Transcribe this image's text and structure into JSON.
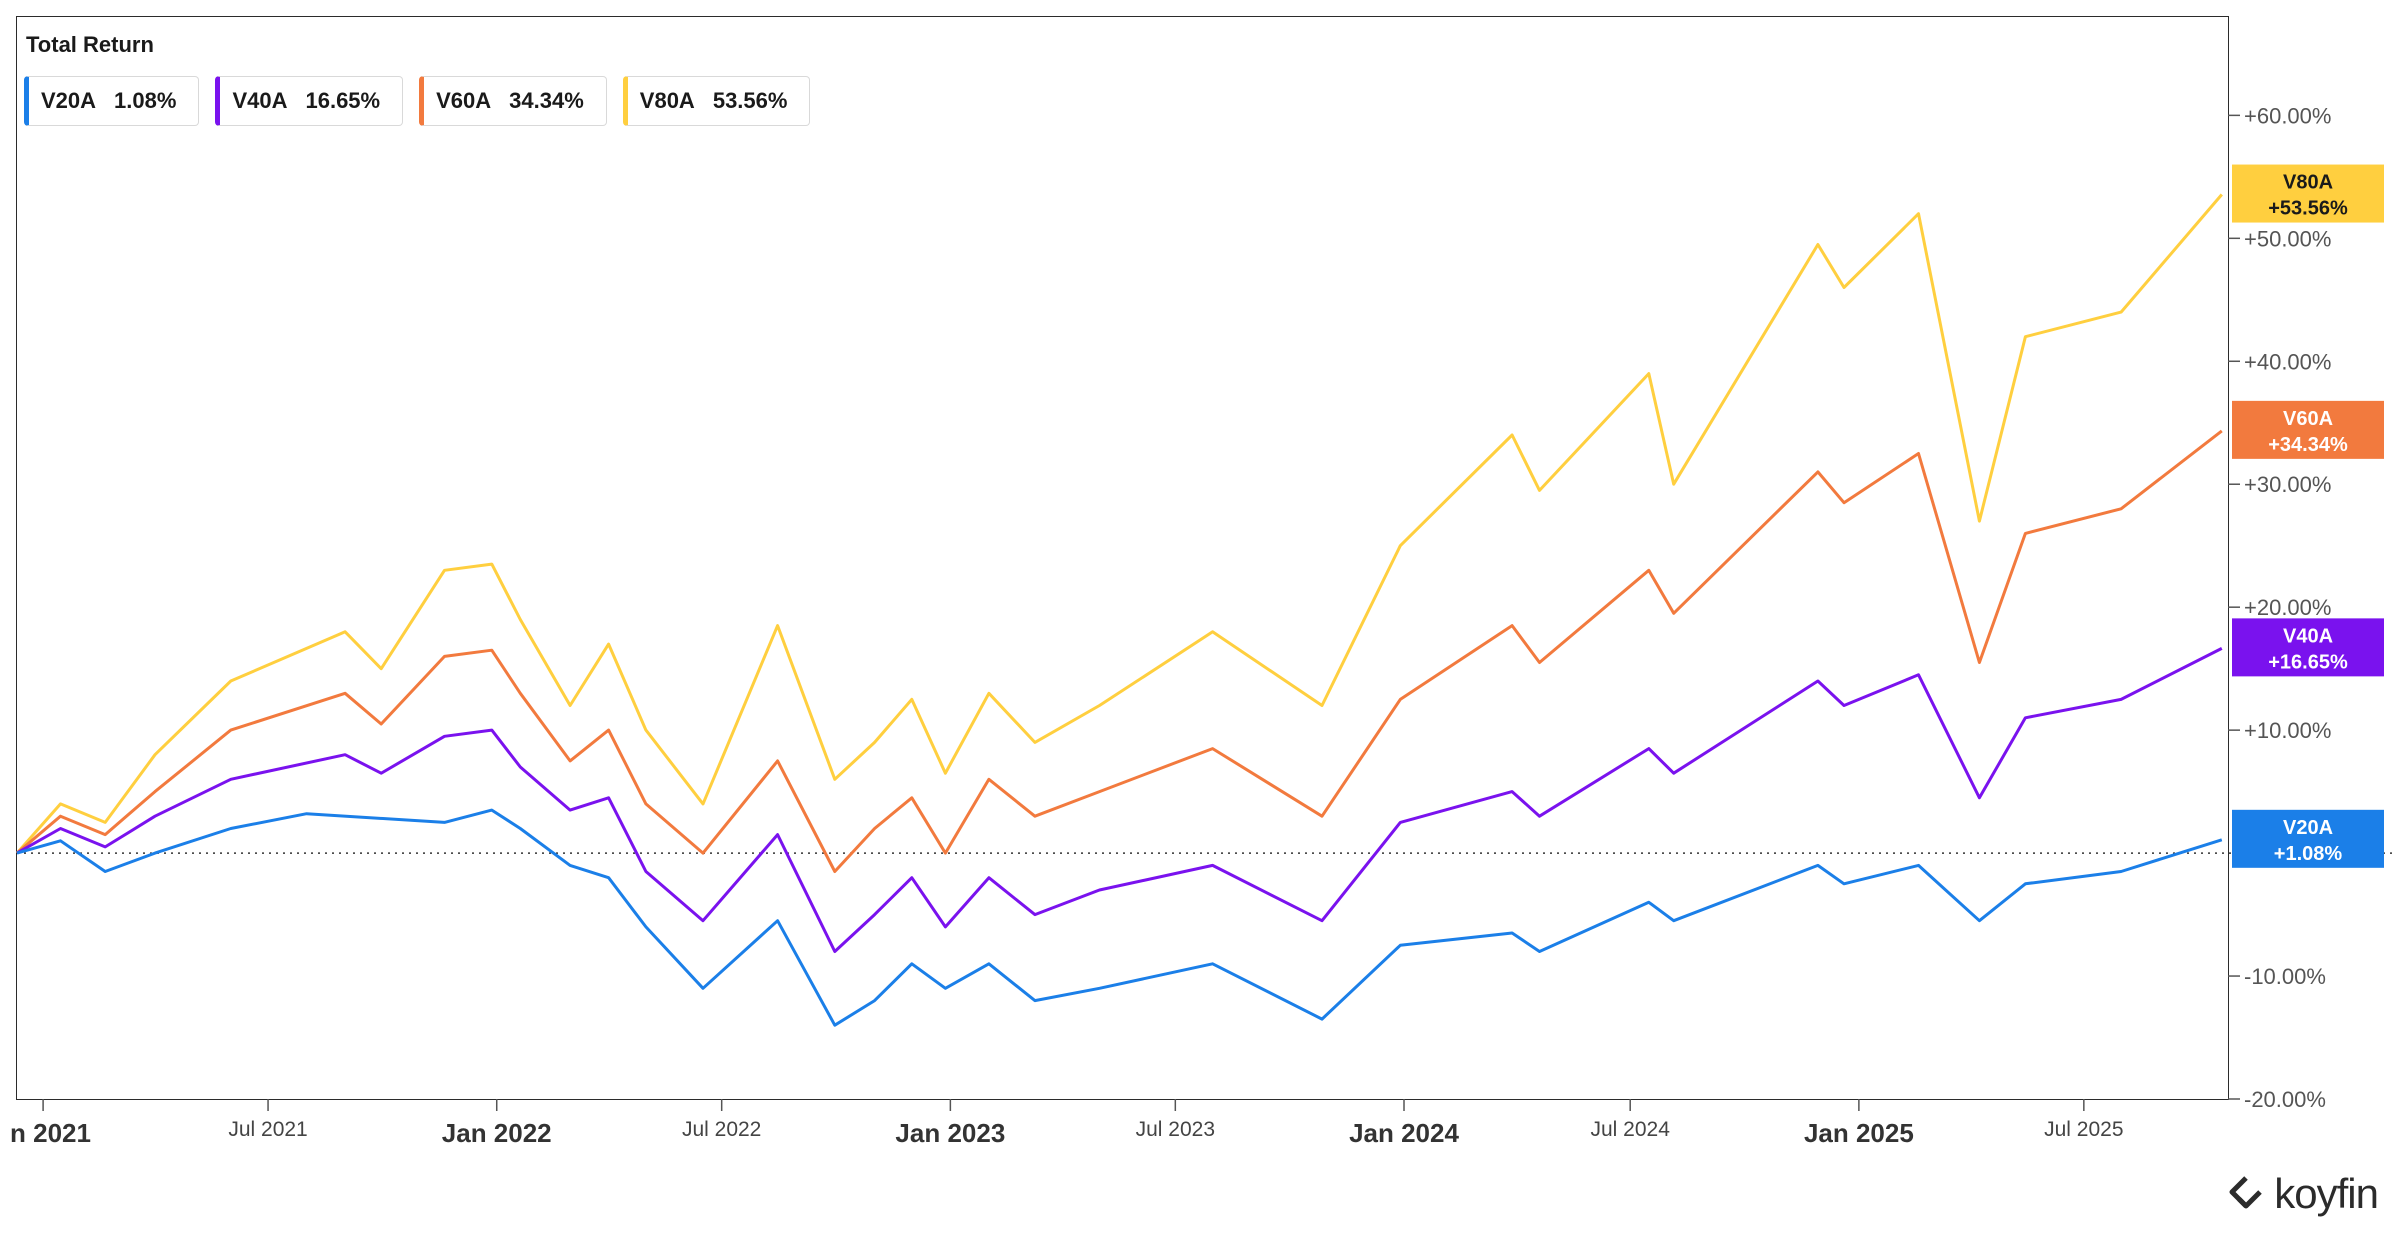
{
  "title": "Total Return",
  "legend": [
    {
      "name": "V20A",
      "value": "1.08%",
      "color": "#1b7fe8"
    },
    {
      "name": "V40A",
      "value": "16.65%",
      "color": "#7a12ee"
    },
    {
      "name": "V60A",
      "value": "34.34%",
      "color": "#f27a3e"
    },
    {
      "name": "V80A",
      "value": "53.56%",
      "color": "#ffcf3f"
    }
  ],
  "brand": "koyfin",
  "chart_data": {
    "type": "line",
    "title": "Total Return",
    "x_ticks": [
      {
        "label": "n 2021",
        "date": "2021-01-01"
      },
      {
        "label": "Jul 2021",
        "date": "2021-07-01"
      },
      {
        "label": "Jan 2022",
        "date": "2022-01-01"
      },
      {
        "label": "Jul 2022",
        "date": "2022-07-01"
      },
      {
        "label": "Jan 2023",
        "date": "2023-01-01"
      },
      {
        "label": "Jul 2023",
        "date": "2023-07-01"
      },
      {
        "label": "Jan 2024",
        "date": "2024-01-01"
      },
      {
        "label": "Jul 2024",
        "date": "2024-07-01"
      },
      {
        "label": "Jan 2025",
        "date": "2025-01-01"
      },
      {
        "label": "Jul 2025",
        "date": "2025-07-01"
      }
    ],
    "y_ticks": [
      {
        "value": 60,
        "label": "+60.00%"
      },
      {
        "value": 50,
        "label": "+50.00%"
      },
      {
        "value": 40,
        "label": "+40.00%"
      },
      {
        "value": 30,
        "label": "+30.00%"
      },
      {
        "value": 20,
        "label": "+20.00%"
      },
      {
        "value": 10,
        "label": "+10.00%"
      },
      {
        "value": -10,
        "label": "-10.00%"
      },
      {
        "value": -20,
        "label": "-20.00%"
      }
    ],
    "ylim": [
      -20,
      68
    ],
    "xlim": [
      "2020-12-11",
      "2025-10-25"
    ],
    "zero_line": true,
    "series": [
      {
        "name": "V20A",
        "color": "#1b7fe8",
        "end_label": "+1.08%",
        "points": [
          [
            "2020-12-11",
            0
          ],
          [
            "2021-01-15",
            1
          ],
          [
            "2021-02-20",
            -1.5
          ],
          [
            "2021-04-01",
            0
          ],
          [
            "2021-06-01",
            2
          ],
          [
            "2021-08-01",
            3.2
          ],
          [
            "2021-11-20",
            2.5
          ],
          [
            "2021-12-28",
            3.5
          ],
          [
            "2022-01-20",
            2
          ],
          [
            "2022-03-01",
            -1
          ],
          [
            "2022-04-01",
            -2
          ],
          [
            "2022-05-01",
            -6
          ],
          [
            "2022-06-16",
            -11
          ],
          [
            "2022-08-15",
            -5.5
          ],
          [
            "2022-09-30",
            -14
          ],
          [
            "2022-11-01",
            -12
          ],
          [
            "2022-12-01",
            -9
          ],
          [
            "2022-12-28",
            -11
          ],
          [
            "2023-02-01",
            -9
          ],
          [
            "2023-03-10",
            -12
          ],
          [
            "2023-05-01",
            -11
          ],
          [
            "2023-07-31",
            -9
          ],
          [
            "2023-10-27",
            -13.5
          ],
          [
            "2023-12-29",
            -7.5
          ],
          [
            "2024-03-28",
            -6.5
          ],
          [
            "2024-04-19",
            -8
          ],
          [
            "2024-07-16",
            -4
          ],
          [
            "2024-08-05",
            -5.5
          ],
          [
            "2024-11-29",
            -1
          ],
          [
            "2024-12-20",
            -2.5
          ],
          [
            "2025-02-18",
            -1
          ],
          [
            "2025-04-08",
            -5.5
          ],
          [
            "2025-05-15",
            -2.5
          ],
          [
            "2025-07-31",
            -1.5
          ],
          [
            "2025-10-20",
            1.08
          ]
        ]
      },
      {
        "name": "V40A",
        "color": "#7a12ee",
        "end_label": "+16.65%",
        "points": [
          [
            "2020-12-11",
            0
          ],
          [
            "2021-01-15",
            2
          ],
          [
            "2021-02-20",
            0.5
          ],
          [
            "2021-04-01",
            3
          ],
          [
            "2021-06-01",
            6
          ],
          [
            "2021-09-01",
            8
          ],
          [
            "2021-09-30",
            6.5
          ],
          [
            "2021-11-20",
            9.5
          ],
          [
            "2021-12-28",
            10
          ],
          [
            "2022-01-20",
            7
          ],
          [
            "2022-03-01",
            3.5
          ],
          [
            "2022-04-01",
            4.5
          ],
          [
            "2022-05-01",
            -1.5
          ],
          [
            "2022-06-16",
            -5.5
          ],
          [
            "2022-08-15",
            1.5
          ],
          [
            "2022-09-30",
            -8
          ],
          [
            "2022-11-01",
            -5
          ],
          [
            "2022-12-01",
            -2
          ],
          [
            "2022-12-28",
            -6
          ],
          [
            "2023-02-01",
            -2
          ],
          [
            "2023-03-10",
            -5
          ],
          [
            "2023-05-01",
            -3
          ],
          [
            "2023-07-31",
            -1
          ],
          [
            "2023-10-27",
            -5.5
          ],
          [
            "2023-12-29",
            2.5
          ],
          [
            "2024-03-28",
            5
          ],
          [
            "2024-04-19",
            3
          ],
          [
            "2024-07-16",
            8.5
          ],
          [
            "2024-08-05",
            6.5
          ],
          [
            "2024-11-29",
            14
          ],
          [
            "2024-12-20",
            12
          ],
          [
            "2025-02-18",
            14.5
          ],
          [
            "2025-04-08",
            4.5
          ],
          [
            "2025-05-15",
            11
          ],
          [
            "2025-07-31",
            12.5
          ],
          [
            "2025-10-20",
            16.65
          ]
        ]
      },
      {
        "name": "V60A",
        "color": "#f27a3e",
        "end_label": "+34.34%",
        "points": [
          [
            "2020-12-11",
            0
          ],
          [
            "2021-01-15",
            3
          ],
          [
            "2021-02-20",
            1.5
          ],
          [
            "2021-04-01",
            5
          ],
          [
            "2021-06-01",
            10
          ],
          [
            "2021-09-01",
            13
          ],
          [
            "2021-09-30",
            10.5
          ],
          [
            "2021-11-20",
            16
          ],
          [
            "2021-12-28",
            16.5
          ],
          [
            "2022-01-20",
            13
          ],
          [
            "2022-03-01",
            7.5
          ],
          [
            "2022-04-01",
            10
          ],
          [
            "2022-05-01",
            4
          ],
          [
            "2022-06-16",
            0
          ],
          [
            "2022-08-15",
            7.5
          ],
          [
            "2022-09-30",
            -1.5
          ],
          [
            "2022-11-01",
            2
          ],
          [
            "2022-12-01",
            4.5
          ],
          [
            "2022-12-28",
            0
          ],
          [
            "2023-02-01",
            6
          ],
          [
            "2023-03-10",
            3
          ],
          [
            "2023-05-01",
            5
          ],
          [
            "2023-07-31",
            8.5
          ],
          [
            "2023-10-27",
            3
          ],
          [
            "2023-12-29",
            12.5
          ],
          [
            "2024-03-28",
            18.5
          ],
          [
            "2024-04-19",
            15.5
          ],
          [
            "2024-07-16",
            23
          ],
          [
            "2024-08-05",
            19.5
          ],
          [
            "2024-11-29",
            31
          ],
          [
            "2024-12-20",
            28.5
          ],
          [
            "2025-02-18",
            32.5
          ],
          [
            "2025-04-08",
            15.5
          ],
          [
            "2025-05-15",
            26
          ],
          [
            "2025-07-31",
            28
          ],
          [
            "2025-10-20",
            34.34
          ]
        ]
      },
      {
        "name": "V80A",
        "color": "#ffcf3f",
        "end_label": "+53.56%",
        "points": [
          [
            "2020-12-11",
            0
          ],
          [
            "2021-01-15",
            4
          ],
          [
            "2021-02-20",
            2.5
          ],
          [
            "2021-04-01",
            8
          ],
          [
            "2021-06-01",
            14
          ],
          [
            "2021-09-01",
            18
          ],
          [
            "2021-09-30",
            15
          ],
          [
            "2021-11-20",
            23
          ],
          [
            "2021-12-28",
            23.5
          ],
          [
            "2022-01-20",
            19
          ],
          [
            "2022-03-01",
            12
          ],
          [
            "2022-04-01",
            17
          ],
          [
            "2022-05-01",
            10
          ],
          [
            "2022-06-16",
            4
          ],
          [
            "2022-08-15",
            18.5
          ],
          [
            "2022-09-30",
            6
          ],
          [
            "2022-11-01",
            9
          ],
          [
            "2022-12-01",
            12.5
          ],
          [
            "2022-12-28",
            6.5
          ],
          [
            "2023-02-01",
            13
          ],
          [
            "2023-03-10",
            9
          ],
          [
            "2023-05-01",
            12
          ],
          [
            "2023-07-31",
            18
          ],
          [
            "2023-10-27",
            12
          ],
          [
            "2023-12-29",
            25
          ],
          [
            "2024-03-28",
            34
          ],
          [
            "2024-04-19",
            29.5
          ],
          [
            "2024-07-16",
            39
          ],
          [
            "2024-08-05",
            30
          ],
          [
            "2024-11-29",
            49.5
          ],
          [
            "2024-12-20",
            46
          ],
          [
            "2025-02-18",
            52
          ],
          [
            "2025-04-08",
            27
          ],
          [
            "2025-05-15",
            42
          ],
          [
            "2025-07-31",
            44
          ],
          [
            "2025-10-20",
            53.56
          ]
        ]
      }
    ]
  }
}
